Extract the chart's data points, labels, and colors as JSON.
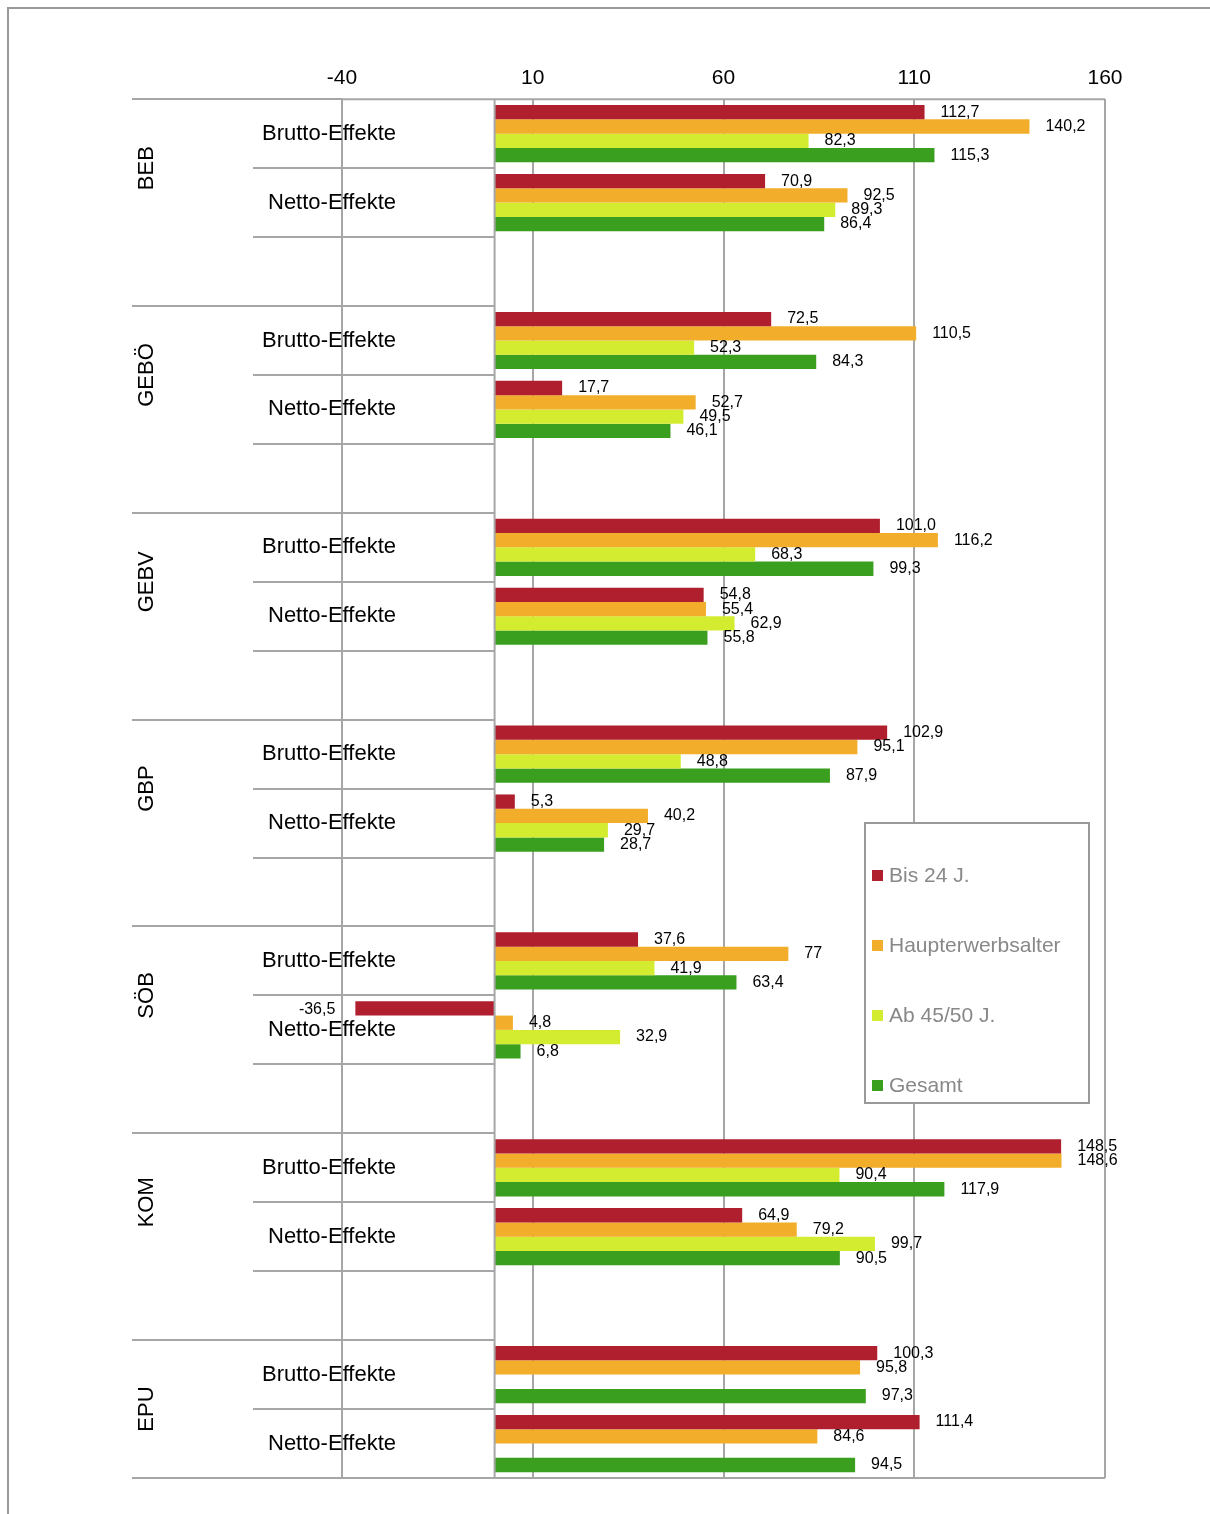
{
  "chart_data": {
    "type": "bar",
    "orientation": "horizontal",
    "categories": [
      "Brutto-Effekte",
      "Netto-Effekte",
      null,
      "Brutto-Effekte",
      "Netto-Effekte",
      null,
      "Brutto-Effekte",
      "Netto-Effekte",
      null,
      "Brutto-Effekte",
      "Netto-Effekte",
      null,
      "Brutto-Effekte",
      "Netto-Effekte",
      null,
      "Brutto-Effekte",
      "Netto-Effekte",
      null,
      "Brutto-Effekte",
      "Netto-Effekte"
    ],
    "annotations": [
      "BEB",
      "GEBÖ",
      "GEBV",
      "GBP",
      "SÖB",
      "KOM",
      "EPU"
    ],
    "series": [
      {
        "name": "Bis 24 J.",
        "color": "#b01f2e",
        "values": [
          112.7,
          70.9,
          null,
          72.5,
          17.7,
          null,
          101.0,
          54.8,
          null,
          102.9,
          5.3,
          null,
          37.6,
          -36.5,
          null,
          148.5,
          64.9,
          null,
          100.3,
          111.4
        ],
        "value_labels": [
          "112,7",
          "70,9",
          null,
          "72,5",
          "17,7",
          null,
          "101,0",
          "54,8",
          null,
          "102,9",
          "5,3",
          null,
          "37,6",
          "-36,5",
          null,
          "148,5",
          "64,9",
          null,
          "100,3",
          "111,4"
        ]
      },
      {
        "name": "Haupterwerbsalter",
        "color": "#f2ae2b",
        "values": [
          140.2,
          92.5,
          null,
          110.5,
          52.7,
          null,
          116.2,
          55.4,
          null,
          95.1,
          40.2,
          null,
          77,
          4.8,
          null,
          148.6,
          79.2,
          null,
          95.8,
          84.6
        ],
        "value_labels": [
          "140,2",
          "92,5",
          null,
          "110,5",
          "52,7",
          null,
          "116,2",
          "55,4",
          null,
          "95,1",
          "40,2",
          null,
          "77",
          "4,8",
          null,
          "148,6",
          "79,2",
          null,
          "95,8",
          "84,6"
        ]
      },
      {
        "name": "Ab 45/50 J.",
        "color": "#d4ec30",
        "values": [
          82.3,
          89.3,
          null,
          52.3,
          49.5,
          null,
          68.3,
          62.9,
          null,
          48.8,
          29.7,
          null,
          41.9,
          32.9,
          null,
          90.4,
          99.7,
          null,
          null,
          null
        ],
        "value_labels": [
          "82,3",
          "89,3",
          null,
          "52,3",
          "49,5",
          null,
          "68,3",
          "62,9",
          null,
          "48,8",
          "29,7",
          null,
          "41,9",
          "32,9",
          null,
          "90,4",
          "99,7",
          null,
          null,
          null
        ]
      },
      {
        "name": "Gesamt",
        "color": "#3a9e1f",
        "values": [
          115.3,
          86.4,
          null,
          84.3,
          46.1,
          null,
          99.3,
          55.8,
          null,
          87.9,
          28.7,
          null,
          63.4,
          6.8,
          null,
          117.9,
          90.5,
          null,
          97.3,
          94.5
        ],
        "value_labels": [
          "115,3",
          "86,4",
          null,
          "84,3",
          "46,1",
          null,
          "99,3",
          "55,8",
          null,
          "87,9",
          "28,7",
          null,
          "63,4",
          "6,8",
          null,
          "117,9",
          "90,5",
          null,
          "97,3",
          "94,5"
        ]
      }
    ],
    "xlim": [
      -40,
      160
    ],
    "xticks": [
      -40,
      10,
      60,
      110,
      160
    ],
    "grid": "x",
    "legend": "right"
  }
}
